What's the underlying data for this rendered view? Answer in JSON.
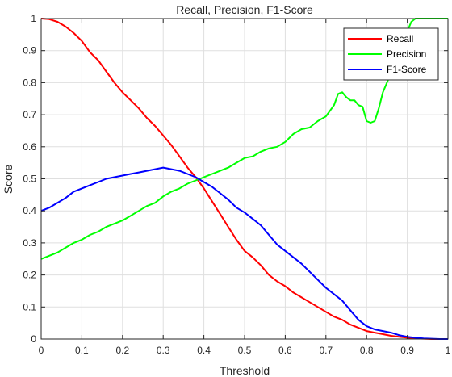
{
  "chart_data": {
    "type": "line",
    "title": "Recall, Precision, F1-Score",
    "xlabel": "Threshold",
    "ylabel": "Score",
    "xlim": [
      0,
      1
    ],
    "ylim": [
      0,
      1
    ],
    "grid": true,
    "legend_position": "top-right",
    "x_ticks": [
      "0",
      "0.1",
      "0.2",
      "0.3",
      "0.4",
      "0.5",
      "0.6",
      "0.7",
      "0.8",
      "0.9",
      "1"
    ],
    "y_ticks": [
      "0",
      "0.1",
      "0.2",
      "0.3",
      "0.4",
      "0.5",
      "0.6",
      "0.7",
      "0.8",
      "0.9",
      "1"
    ],
    "series": [
      {
        "name": "Recall",
        "color": "#ff0000",
        "points": [
          [
            0.0,
            1.0
          ],
          [
            0.02,
            0.998
          ],
          [
            0.04,
            0.99
          ],
          [
            0.06,
            0.975
          ],
          [
            0.08,
            0.955
          ],
          [
            0.1,
            0.93
          ],
          [
            0.12,
            0.895
          ],
          [
            0.14,
            0.87
          ],
          [
            0.16,
            0.835
          ],
          [
            0.18,
            0.8
          ],
          [
            0.2,
            0.77
          ],
          [
            0.22,
            0.745
          ],
          [
            0.24,
            0.72
          ],
          [
            0.26,
            0.69
          ],
          [
            0.28,
            0.665
          ],
          [
            0.3,
            0.635
          ],
          [
            0.32,
            0.605
          ],
          [
            0.34,
            0.57
          ],
          [
            0.36,
            0.535
          ],
          [
            0.38,
            0.505
          ],
          [
            0.4,
            0.47
          ],
          [
            0.42,
            0.43
          ],
          [
            0.44,
            0.39
          ],
          [
            0.46,
            0.35
          ],
          [
            0.48,
            0.31
          ],
          [
            0.5,
            0.275
          ],
          [
            0.52,
            0.255
          ],
          [
            0.54,
            0.23
          ],
          [
            0.56,
            0.2
          ],
          [
            0.58,
            0.18
          ],
          [
            0.6,
            0.165
          ],
          [
            0.62,
            0.145
          ],
          [
            0.64,
            0.13
          ],
          [
            0.66,
            0.115
          ],
          [
            0.68,
            0.1
          ],
          [
            0.7,
            0.085
          ],
          [
            0.72,
            0.07
          ],
          [
            0.74,
            0.06
          ],
          [
            0.76,
            0.045
          ],
          [
            0.78,
            0.035
          ],
          [
            0.8,
            0.025
          ],
          [
            0.82,
            0.02
          ],
          [
            0.84,
            0.015
          ],
          [
            0.86,
            0.01
          ],
          [
            0.88,
            0.007
          ],
          [
            0.9,
            0.004
          ],
          [
            0.92,
            0.002
          ],
          [
            0.94,
            0.001
          ],
          [
            0.96,
            0.0
          ],
          [
            0.98,
            0.0
          ],
          [
            1.0,
            0.0
          ]
        ]
      },
      {
        "name": "Precision",
        "color": "#00ff00",
        "points": [
          [
            0.0,
            0.25
          ],
          [
            0.02,
            0.26
          ],
          [
            0.04,
            0.27
          ],
          [
            0.06,
            0.285
          ],
          [
            0.08,
            0.3
          ],
          [
            0.1,
            0.31
          ],
          [
            0.12,
            0.325
          ],
          [
            0.14,
            0.335
          ],
          [
            0.16,
            0.35
          ],
          [
            0.18,
            0.36
          ],
          [
            0.2,
            0.37
          ],
          [
            0.22,
            0.385
          ],
          [
            0.24,
            0.4
          ],
          [
            0.26,
            0.415
          ],
          [
            0.28,
            0.425
          ],
          [
            0.3,
            0.445
          ],
          [
            0.32,
            0.46
          ],
          [
            0.34,
            0.47
          ],
          [
            0.36,
            0.485
          ],
          [
            0.38,
            0.495
          ],
          [
            0.4,
            0.505
          ],
          [
            0.42,
            0.515
          ],
          [
            0.44,
            0.525
          ],
          [
            0.46,
            0.535
          ],
          [
            0.48,
            0.55
          ],
          [
            0.5,
            0.565
          ],
          [
            0.52,
            0.57
          ],
          [
            0.54,
            0.585
          ],
          [
            0.56,
            0.595
          ],
          [
            0.58,
            0.6
          ],
          [
            0.6,
            0.615
          ],
          [
            0.62,
            0.64
          ],
          [
            0.64,
            0.655
          ],
          [
            0.66,
            0.66
          ],
          [
            0.68,
            0.68
          ],
          [
            0.7,
            0.695
          ],
          [
            0.72,
            0.73
          ],
          [
            0.73,
            0.765
          ],
          [
            0.74,
            0.77
          ],
          [
            0.75,
            0.755
          ],
          [
            0.76,
            0.745
          ],
          [
            0.77,
            0.745
          ],
          [
            0.78,
            0.73
          ],
          [
            0.79,
            0.725
          ],
          [
            0.8,
            0.68
          ],
          [
            0.81,
            0.675
          ],
          [
            0.82,
            0.68
          ],
          [
            0.83,
            0.72
          ],
          [
            0.84,
            0.77
          ],
          [
            0.85,
            0.8
          ],
          [
            0.86,
            0.83
          ],
          [
            0.87,
            0.86
          ],
          [
            0.88,
            0.89
          ],
          [
            0.89,
            0.92
          ],
          [
            0.9,
            0.96
          ],
          [
            0.91,
            0.99
          ],
          [
            0.92,
            1.0
          ],
          [
            0.94,
            1.0
          ],
          [
            0.96,
            1.0
          ],
          [
            0.98,
            1.0
          ],
          [
            1.0,
            1.0
          ]
        ]
      },
      {
        "name": "F1-Score",
        "color": "#0000ff",
        "points": [
          [
            0.0,
            0.4
          ],
          [
            0.02,
            0.41
          ],
          [
            0.04,
            0.425
          ],
          [
            0.06,
            0.44
          ],
          [
            0.08,
            0.46
          ],
          [
            0.1,
            0.47
          ],
          [
            0.12,
            0.48
          ],
          [
            0.14,
            0.49
          ],
          [
            0.16,
            0.5
          ],
          [
            0.18,
            0.505
          ],
          [
            0.2,
            0.51
          ],
          [
            0.22,
            0.515
          ],
          [
            0.24,
            0.52
          ],
          [
            0.26,
            0.525
          ],
          [
            0.28,
            0.53
          ],
          [
            0.3,
            0.535
          ],
          [
            0.32,
            0.53
          ],
          [
            0.34,
            0.525
          ],
          [
            0.36,
            0.515
          ],
          [
            0.38,
            0.505
          ],
          [
            0.4,
            0.49
          ],
          [
            0.42,
            0.475
          ],
          [
            0.44,
            0.455
          ],
          [
            0.46,
            0.435
          ],
          [
            0.48,
            0.41
          ],
          [
            0.5,
            0.395
          ],
          [
            0.52,
            0.375
          ],
          [
            0.54,
            0.355
          ],
          [
            0.56,
            0.325
          ],
          [
            0.58,
            0.295
          ],
          [
            0.6,
            0.275
          ],
          [
            0.62,
            0.255
          ],
          [
            0.64,
            0.235
          ],
          [
            0.66,
            0.21
          ],
          [
            0.68,
            0.185
          ],
          [
            0.7,
            0.16
          ],
          [
            0.72,
            0.14
          ],
          [
            0.74,
            0.12
          ],
          [
            0.76,
            0.09
          ],
          [
            0.78,
            0.06
          ],
          [
            0.8,
            0.04
          ],
          [
            0.82,
            0.03
          ],
          [
            0.84,
            0.025
          ],
          [
            0.86,
            0.02
          ],
          [
            0.88,
            0.012
          ],
          [
            0.9,
            0.007
          ],
          [
            0.92,
            0.004
          ],
          [
            0.94,
            0.002
          ],
          [
            0.96,
            0.001
          ],
          [
            0.98,
            0.0
          ],
          [
            1.0,
            0.0
          ]
        ]
      }
    ]
  }
}
